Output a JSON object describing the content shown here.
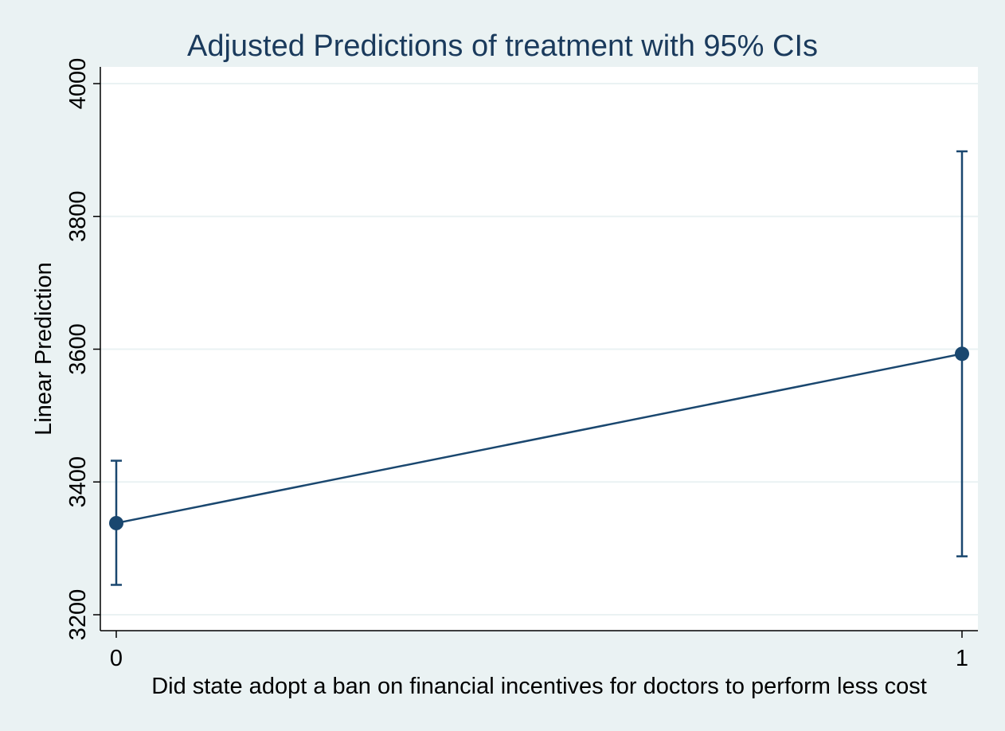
{
  "chart_data": {
    "type": "line",
    "title": "Adjusted Predictions of treatment with 95% CIs",
    "xlabel": "Did state adopt a ban on financial incentives for doctors to perform less cost",
    "ylabel": "Linear Prediction",
    "x": [
      0,
      1
    ],
    "x_tick_labels": [
      "0",
      "1"
    ],
    "ylim": [
      3200,
      4000
    ],
    "y_ticks": [
      3200,
      3400,
      3600,
      3800,
      4000
    ],
    "y_tick_labels": [
      "3200",
      "3400",
      "3600",
      "3800",
      "4000"
    ],
    "grid": true,
    "series": [
      {
        "values": [
          3338,
          3593
        ],
        "ci_lower": [
          3245,
          3288
        ],
        "ci_upper": [
          3432,
          3898
        ]
      }
    ],
    "colors": {
      "series": "#1a476f",
      "grid": "#eaf2f3",
      "plot_background": "#ffffff",
      "page_background": "#eaf2f3",
      "title": "#1a3a5c"
    }
  }
}
